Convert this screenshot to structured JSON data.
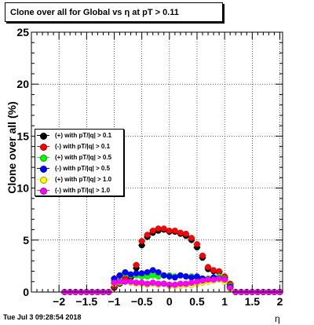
{
  "title": "Clone  over all for Global vs   η at pT > 0.11",
  "timestamp": "Tue Jul  3 09:28:54 2018",
  "chart_data": {
    "type": "scatter",
    "title": "Clone  over all for Global vs   η at pT > 0.11",
    "xlabel": "η",
    "ylabel": "Clone  over all (%)",
    "xlim": [
      -2.5,
      2.05
    ],
    "ylim": [
      0,
      25
    ],
    "x_ticks": [
      -2,
      -1.5,
      -1,
      -0.5,
      0,
      0.5,
      1,
      1.5,
      2
    ],
    "x_tick_labels": [
      "−2",
      "−1.5",
      "−1",
      "−0.5",
      "0",
      "0.5",
      "1",
      "1.5",
      "2"
    ],
    "y_ticks": [
      0,
      5,
      10,
      15,
      20,
      25
    ],
    "y_tick_labels": [
      "0",
      "5",
      "10",
      "15",
      "20",
      "25"
    ],
    "grid": true,
    "legend_position": "middle-left",
    "x": [
      -1.9,
      -1.8,
      -1.7,
      -1.6,
      -1.5,
      -1.4,
      -1.3,
      -1.2,
      -1.1,
      -1.0,
      -0.9,
      -0.8,
      -0.7,
      -0.6,
      -0.5,
      -0.4,
      -0.3,
      -0.2,
      -0.1,
      0.0,
      0.1,
      0.2,
      0.3,
      0.4,
      0.5,
      0.6,
      0.7,
      0.8,
      0.9,
      1.0,
      1.1,
      1.2,
      1.3,
      1.4,
      1.5,
      1.6,
      1.7,
      1.8,
      1.9,
      2.0
    ],
    "series": [
      {
        "name": "(+) with pT/|q| > 0.1",
        "color": "#000000",
        "values": [
          0,
          0,
          0,
          0,
          0,
          0,
          0,
          0,
          0,
          0.4,
          0.8,
          1.1,
          1.4,
          2.3,
          4.5,
          5.3,
          5.7,
          5.9,
          6.0,
          5.8,
          5.8,
          5.6,
          5.4,
          5.0,
          4.3,
          3.3,
          2.2,
          2.0,
          1.9,
          1.4,
          0.7,
          0,
          0,
          0,
          0,
          0,
          0,
          0,
          0,
          0
        ]
      },
      {
        "name": "(-) with pT/|q| > 0.1",
        "color": "#ff0000",
        "values": [
          0,
          0,
          0,
          0,
          0,
          0,
          0,
          0,
          0,
          0.5,
          0.9,
          1.3,
          1.6,
          2.6,
          4.9,
          5.5,
          5.9,
          6.1,
          6.1,
          5.9,
          5.9,
          5.7,
          5.6,
          5.2,
          4.6,
          3.5,
          2.4,
          2.1,
          2.0,
          1.5,
          0.8,
          0,
          0,
          0,
          0,
          0,
          0,
          0,
          0,
          0
        ]
      },
      {
        "name": "(+) with pT/|q| > 0.5",
        "color": "#00ff00",
        "values": [
          0,
          0,
          0,
          0,
          0,
          0,
          0,
          0,
          0,
          1.1,
          1.5,
          1.8,
          1.6,
          1.6,
          1.5,
          1.5,
          1.6,
          1.5,
          1.6,
          1.6,
          1.5,
          1.6,
          1.5,
          1.5,
          1.4,
          1.3,
          1.3,
          1.4,
          1.5,
          1.3,
          0.6,
          0,
          0,
          0,
          0,
          0,
          0,
          0,
          0,
          0
        ]
      },
      {
        "name": "(-) with pT/|q| > 0.5",
        "color": "#0000ff",
        "values": [
          0,
          0,
          0,
          0,
          0,
          0,
          0,
          0,
          0,
          1.3,
          1.6,
          1.9,
          1.7,
          1.8,
          1.8,
          1.9,
          2.1,
          1.9,
          1.6,
          1.5,
          1.4,
          1.6,
          1.5,
          1.4,
          1.5,
          1.3,
          1.2,
          1.4,
          1.3,
          1.2,
          0.5,
          0,
          0,
          0,
          0,
          0,
          0,
          0,
          0,
          0
        ]
      },
      {
        "name": "(+) with pT/|q| > 1.0",
        "color": "#ffff00",
        "values": [
          0,
          0,
          0,
          0,
          0,
          0,
          0,
          0,
          0,
          0.8,
          0.9,
          1.0,
          0.9,
          0.8,
          0.8,
          0.7,
          0.8,
          0.7,
          0.8,
          0.6,
          0.6,
          0.6,
          0.7,
          0.7,
          0.8,
          0.9,
          1.0,
          1.1,
          1.2,
          1.0,
          0.3,
          0,
          0,
          0,
          0,
          0,
          0,
          0,
          0,
          0
        ]
      },
      {
        "name": "(-) with pT/|q| > 1.0",
        "color": "#ff00ff",
        "values": [
          0,
          0,
          0,
          0,
          0,
          0,
          0,
          0,
          0,
          0.9,
          1.0,
          1.0,
          1.0,
          0.9,
          0.9,
          0.8,
          0.9,
          0.8,
          0.8,
          0.7,
          0.7,
          0.8,
          0.8,
          0.9,
          1.0,
          1.1,
          1.2,
          1.2,
          1.3,
          1.2,
          0.4,
          0,
          0,
          0,
          0,
          0,
          0,
          0,
          0,
          0
        ]
      }
    ]
  }
}
